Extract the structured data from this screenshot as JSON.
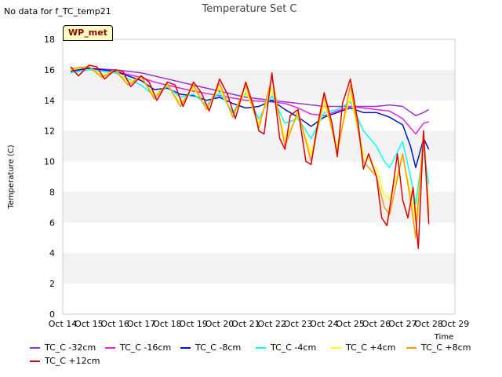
{
  "header": {
    "nodata": "No data for f_TC_temp21",
    "title": "Temperature Set C"
  },
  "badge": "WP_met",
  "chart_data": {
    "type": "line",
    "title": "Temperature Set C",
    "xlabel": "Time",
    "ylabel": "Temperature (C)",
    "ylim": [
      0,
      18
    ],
    "xlim": [
      14,
      29
    ],
    "yticks": [
      0,
      2,
      4,
      6,
      8,
      10,
      12,
      14,
      16,
      18
    ],
    "xticks": [
      14,
      15,
      16,
      17,
      18,
      19,
      20,
      21,
      22,
      23,
      24,
      25,
      26,
      27,
      28,
      29
    ],
    "xtick_labels": [
      "Oct 14",
      "Oct 15",
      "Oct 16",
      "Oct 17",
      "Oct 18",
      "Oct 19",
      "Oct 20",
      "Oct 21",
      "Oct 22",
      "Oct 23",
      "Oct 24",
      "Oct 25",
      "Oct 26",
      "Oct 27",
      "Oct 28",
      "Oct 29"
    ],
    "grid": "horizontal bands",
    "legend_position": "bottom",
    "series": [
      {
        "name": "TC_C -32cm",
        "color": "#9b30d9",
        "x": [
          14.3,
          15,
          16,
          17,
          18,
          19,
          20,
          21,
          22,
          23,
          24,
          25,
          26,
          26.5,
          27,
          27.5,
          27.8,
          28
        ],
        "y": [
          16.0,
          16.1,
          16.0,
          15.8,
          15.4,
          15.0,
          14.6,
          14.2,
          14.0,
          13.8,
          13.6,
          13.6,
          13.6,
          13.7,
          13.6,
          13.0,
          13.2,
          13.4
        ]
      },
      {
        "name": "TC_C -16cm",
        "color": "#e61ee6",
        "x": [
          14.3,
          15,
          16,
          17,
          17.5,
          18,
          18.5,
          19,
          20,
          21,
          22,
          22.5,
          23,
          23.5,
          24,
          24.5,
          25,
          25.5,
          26,
          26.5,
          27,
          27.5,
          27.8,
          28
        ],
        "y": [
          16.0,
          16.1,
          15.9,
          15.5,
          15.2,
          15.0,
          14.8,
          14.6,
          14.3,
          14.0,
          13.9,
          13.8,
          13.5,
          13.1,
          13.0,
          13.3,
          13.6,
          13.5,
          13.4,
          13.3,
          12.8,
          11.8,
          12.5,
          12.6
        ]
      },
      {
        "name": "TC_C -8cm",
        "color": "#0014c8",
        "x": [
          14.3,
          15,
          16,
          17,
          17.5,
          18,
          18.5,
          19,
          19.5,
          20,
          20.5,
          21,
          21.5,
          22,
          22.5,
          23,
          23.5,
          24,
          24.5,
          25,
          25.5,
          26,
          26.5,
          27,
          27.3,
          27.5,
          27.8,
          28
        ],
        "y": [
          15.9,
          16.1,
          15.9,
          15.3,
          14.7,
          14.8,
          14.4,
          14.3,
          14.0,
          14.2,
          13.8,
          13.5,
          13.6,
          14.0,
          13.4,
          12.9,
          12.3,
          12.9,
          13.2,
          13.5,
          13.2,
          13.2,
          12.9,
          12.4,
          11.0,
          9.6,
          11.5,
          10.8
        ]
      },
      {
        "name": "TC_C -4cm",
        "color": "#00ffff",
        "x": [
          14.3,
          15,
          16,
          17,
          17.5,
          18,
          18.5,
          19,
          19.5,
          20,
          20.5,
          21,
          21.5,
          22,
          22.5,
          23,
          23.5,
          24,
          24.5,
          25,
          25.5,
          26,
          26.3,
          26.5,
          27,
          27.3,
          27.5,
          27.8,
          28
        ],
        "y": [
          15.8,
          16.0,
          15.8,
          15.0,
          14.3,
          14.9,
          14.2,
          14.4,
          13.7,
          14.5,
          13.2,
          14.5,
          12.8,
          14.3,
          12.5,
          12.8,
          11.5,
          13.2,
          13.4,
          13.9,
          12.0,
          11.0,
          10.0,
          9.6,
          11.3,
          9.0,
          7.2,
          11.0,
          8.5
        ]
      },
      {
        "name": "TC_C +4cm",
        "color": "#ffff00",
        "x": [
          14.3,
          15,
          15.5,
          16,
          16.5,
          17,
          17.5,
          18,
          18.5,
          19,
          19.5,
          20,
          20.5,
          21,
          21.5,
          22,
          22.5,
          23,
          23.5,
          24,
          24.5,
          25,
          25.5,
          26,
          26.3,
          26.5,
          27,
          27.3,
          27.5,
          27.8,
          28
        ],
        "y": [
          16.0,
          16.2,
          15.6,
          16.0,
          15.2,
          15.5,
          14.3,
          15.0,
          13.8,
          14.8,
          13.5,
          14.8,
          13.0,
          14.6,
          12.5,
          14.8,
          11.5,
          13.0,
          10.5,
          13.8,
          11.0,
          14.3,
          10.5,
          9.5,
          7.8,
          7.5,
          10.3,
          8.0,
          6.0,
          11.5,
          7.0
        ]
      },
      {
        "name": "TC_C +8cm",
        "color": "#ff9600",
        "x": [
          14.3,
          15,
          15.5,
          16,
          16.5,
          17,
          17.5,
          18,
          18.5,
          19,
          19.5,
          20,
          20.5,
          21,
          21.5,
          22,
          22.5,
          23,
          23.5,
          24,
          24.5,
          25,
          25.5,
          26,
          26.3,
          26.5,
          27,
          27.3,
          27.5,
          27.8,
          28
        ],
        "y": [
          16.1,
          16.2,
          15.5,
          16.0,
          15.0,
          15.6,
          14.1,
          15.1,
          13.6,
          15.0,
          13.4,
          15.1,
          12.9,
          15.0,
          12.2,
          15.5,
          11.0,
          13.3,
          10.0,
          14.3,
          10.6,
          15.0,
          10.0,
          9.0,
          7.0,
          6.5,
          10.5,
          7.5,
          5.0,
          12.0,
          6.5
        ]
      },
      {
        "name": "TC_C +12cm",
        "color": "#dc0000",
        "x": [
          14.3,
          14.6,
          15,
          15.3,
          15.6,
          16,
          16.3,
          16.6,
          17,
          17.3,
          17.6,
          18,
          18.3,
          18.6,
          19,
          19.3,
          19.6,
          20,
          20.3,
          20.6,
          21,
          21.3,
          21.5,
          21.7,
          22,
          22.3,
          22.5,
          22.7,
          23,
          23.3,
          23.5,
          23.7,
          24,
          24.3,
          24.5,
          24.7,
          25,
          25.3,
          25.5,
          25.7,
          26,
          26.2,
          26.4,
          26.6,
          26.8,
          27,
          27.2,
          27.4,
          27.6,
          27.8,
          28
        ],
        "y": [
          16.2,
          15.6,
          16.3,
          16.2,
          15.4,
          16.0,
          15.9,
          14.9,
          15.6,
          15.2,
          14.0,
          15.2,
          15.0,
          13.6,
          15.2,
          14.5,
          13.3,
          15.4,
          14.4,
          12.8,
          15.2,
          13.6,
          12.0,
          11.8,
          15.8,
          11.5,
          10.8,
          13.0,
          13.4,
          10.0,
          9.8,
          12.0,
          14.5,
          12.5,
          10.3,
          13.8,
          15.4,
          12.5,
          9.5,
          10.5,
          9.0,
          6.3,
          5.8,
          8.0,
          10.5,
          7.5,
          6.3,
          8.3,
          4.3,
          12.0,
          5.9
        ]
      }
    ]
  }
}
